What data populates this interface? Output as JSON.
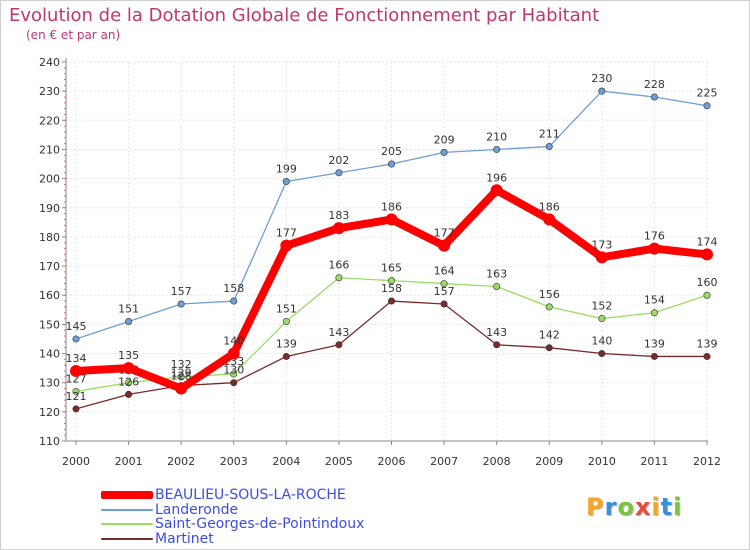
{
  "title": "Evolution de la Dotation Globale de Fonctionnement par Habitant",
  "subtitle": "(en € et par an)",
  "logo_text": "Proxiti",
  "chart_data": {
    "type": "line",
    "title": "Evolution de la Dotation Globale de Fonctionnement par Habitant",
    "subtitle": "(en € et par an)",
    "xlabel": "",
    "ylabel": "",
    "x": [
      "2000",
      "2001",
      "2002",
      "2003",
      "2004",
      "2005",
      "2006",
      "2007",
      "2008",
      "2009",
      "2010",
      "2011",
      "2012"
    ],
    "ylim": [
      110,
      240
    ],
    "yticks": [
      110,
      120,
      130,
      140,
      150,
      160,
      170,
      180,
      190,
      200,
      210,
      220,
      230,
      240
    ],
    "grid": true,
    "legend_position": "bottom-left",
    "series": [
      {
        "name": "BEAULIEU-SOUS-LA-ROCHE",
        "color": "#ff0000",
        "values": [
          134,
          135,
          128,
          140,
          177,
          183,
          186,
          177,
          196,
          186,
          173,
          176,
          174
        ]
      },
      {
        "name": "Landeronde",
        "color": "#6e9ed6",
        "values": [
          145,
          151,
          157,
          158,
          199,
          202,
          205,
          209,
          210,
          211,
          230,
          228,
          225
        ]
      },
      {
        "name": "Saint-Georges-de-Pointindoux",
        "color": "#99dd66",
        "values": [
          127,
          130,
          132,
          133,
          151,
          166,
          165,
          164,
          163,
          156,
          152,
          154,
          160
        ]
      },
      {
        "name": "Martinet",
        "color": "#7a2a2a",
        "values": [
          121,
          126,
          129,
          130,
          139,
          143,
          158,
          157,
          143,
          142,
          140,
          139,
          139
        ]
      }
    ]
  }
}
